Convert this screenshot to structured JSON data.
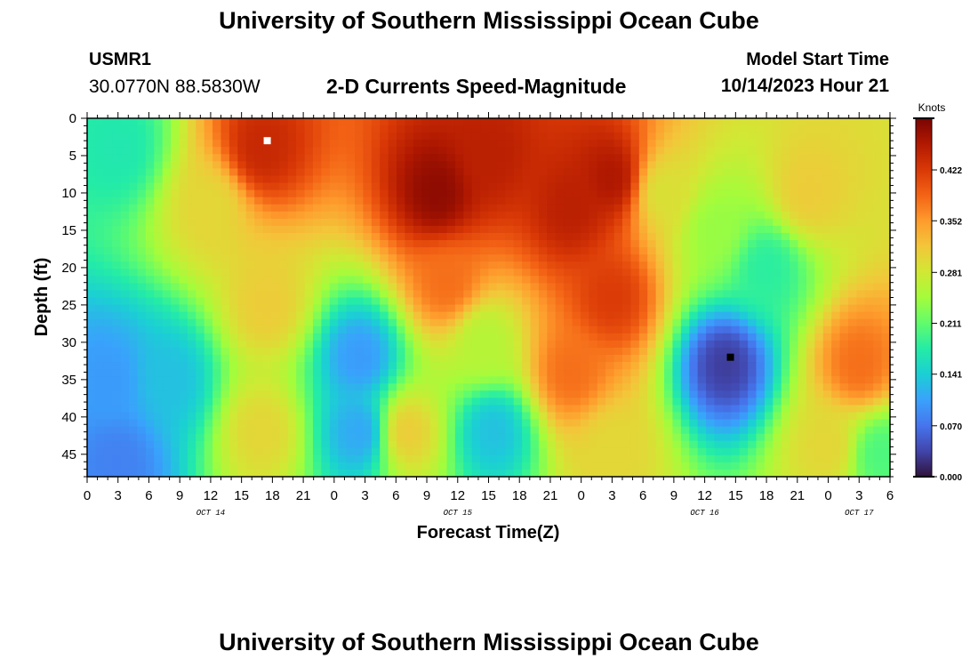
{
  "header": {
    "title": "University of Southern Mississippi Ocean Cube",
    "station_id": "USMR1",
    "coordinates": "30.0770N  88.5830W",
    "subtitle": "2-D Currents Speed-Magnitude",
    "model_start_label": "Model Start Time",
    "model_start_value": "10/14/2023 Hour 21"
  },
  "footer": {
    "title": "University of Southern Mississippi Ocean Cube"
  },
  "chart_data": {
    "type": "heatmap",
    "title": "2-D Currents Speed-Magnitude",
    "xlabel": "Forecast Time(Z)",
    "ylabel": "Depth (ft)",
    "x_unit": "hours since OCT 14 00Z",
    "xlim": [
      0,
      78
    ],
    "ylim": [
      0,
      48
    ],
    "y_inverted": true,
    "x_ticks": [
      0,
      3,
      6,
      9,
      12,
      15,
      18,
      21,
      24,
      27,
      30,
      33,
      36,
      39,
      42,
      45,
      48,
      51,
      54,
      57,
      60,
      63,
      66,
      69,
      72,
      75,
      78
    ],
    "x_tick_labels": [
      "0",
      "3",
      "6",
      "9",
      "12",
      "15",
      "18",
      "21",
      "0",
      "3",
      "6",
      "9",
      "12",
      "15",
      "18",
      "21",
      "0",
      "3",
      "6",
      "9",
      "12",
      "15",
      "18",
      "21",
      "0",
      "3",
      "6"
    ],
    "y_ticks": [
      0,
      5,
      10,
      15,
      20,
      25,
      30,
      35,
      40,
      45
    ],
    "y_tick_labels": [
      "0",
      "5",
      "10",
      "15",
      "20",
      "25",
      "30",
      "35",
      "40",
      "45"
    ],
    "day_labels": [
      {
        "hour": 12,
        "label": "OCT 14"
      },
      {
        "hour": 36,
        "label": "OCT 15"
      },
      {
        "hour": 60,
        "label": "OCT 16"
      },
      {
        "hour": 75,
        "label": "OCT 17"
      }
    ],
    "colorbar": {
      "unit_label": "Knots",
      "min": 0.0,
      "max": 0.493,
      "ticks": [
        0.0,
        0.07,
        0.141,
        0.211,
        0.281,
        0.352,
        0.422
      ],
      "tick_labels": [
        "0.000",
        "0.070",
        "0.141",
        "0.211",
        "0.281",
        "0.352",
        "0.422"
      ],
      "colormap": [
        "#30123b",
        "#4145ab",
        "#4675ed",
        "#39a2fc",
        "#1bcfd4",
        "#24eca6",
        "#61fc6c",
        "#a4fc3b",
        "#d1e834",
        "#f3c63a",
        "#fe9b2d",
        "#f36315",
        "#d93806",
        "#b11901",
        "#7a0402"
      ]
    },
    "markers": [
      {
        "name": "max-marker",
        "hour": 17.5,
        "depth": 3,
        "color": "#ffffff"
      },
      {
        "name": "min-marker",
        "hour": 62.5,
        "depth": 32,
        "color": "#000000"
      }
    ],
    "speed_field_blobs": [
      {
        "hour": 17,
        "depth": 4,
        "speed": 0.44
      },
      {
        "hour": 17.5,
        "depth": 25,
        "speed": 0.31
      },
      {
        "hour": 17,
        "depth": 42,
        "speed": 0.3
      },
      {
        "hour": 12,
        "depth": 12,
        "speed": 0.3
      },
      {
        "hour": 3,
        "depth": 4,
        "speed": 0.17
      },
      {
        "hour": 2,
        "depth": 35,
        "speed": 0.1
      },
      {
        "hour": 3,
        "depth": 46,
        "speed": 0.08
      },
      {
        "hour": 8,
        "depth": 35,
        "speed": 0.13
      },
      {
        "hour": 26.5,
        "depth": 32,
        "speed": 0.1
      },
      {
        "hour": 26.5,
        "depth": 42,
        "speed": 0.11
      },
      {
        "hour": 34,
        "depth": 10,
        "speed": 0.48
      },
      {
        "hour": 39,
        "depth": 5,
        "speed": 0.45
      },
      {
        "hour": 35,
        "depth": 22,
        "speed": 0.38
      },
      {
        "hour": 31,
        "depth": 42,
        "speed": 0.31
      },
      {
        "hour": 38.5,
        "depth": 30,
        "speed": 0.26
      },
      {
        "hour": 39.5,
        "depth": 42,
        "speed": 0.13
      },
      {
        "hour": 47,
        "depth": 12,
        "speed": 0.45
      },
      {
        "hour": 51,
        "depth": 8,
        "speed": 0.46
      },
      {
        "hour": 51,
        "depth": 24,
        "speed": 0.42
      },
      {
        "hour": 47,
        "depth": 34,
        "speed": 0.38
      },
      {
        "hour": 51,
        "depth": 44,
        "speed": 0.3
      },
      {
        "hour": 56,
        "depth": 10,
        "speed": 0.29
      },
      {
        "hour": 62,
        "depth": 33,
        "speed": 0.03
      },
      {
        "hour": 61,
        "depth": 15,
        "speed": 0.24
      },
      {
        "hour": 66,
        "depth": 20,
        "speed": 0.18
      },
      {
        "hour": 70,
        "depth": 10,
        "speed": 0.31
      },
      {
        "hour": 75,
        "depth": 33,
        "speed": 0.38
      },
      {
        "hour": 72,
        "depth": 44,
        "speed": 0.3
      },
      {
        "hour": 77,
        "depth": 45,
        "speed": 0.2
      }
    ]
  }
}
